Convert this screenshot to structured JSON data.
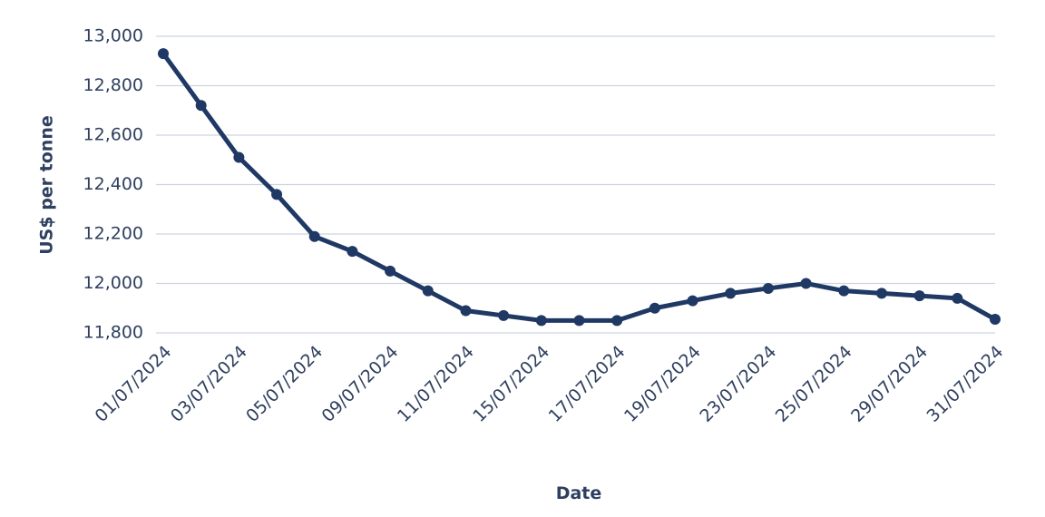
{
  "chart_data": {
    "type": "line",
    "y_label": "US$ per tonne",
    "x_label": "Date",
    "categories": [
      "01/07/2024",
      null,
      "03/07/2024",
      null,
      "05/07/2024",
      null,
      "09/07/2024",
      null,
      "11/07/2024",
      null,
      "15/07/2024",
      null,
      "17/07/2024",
      null,
      "19/07/2024",
      null,
      "23/07/2024",
      null,
      "25/07/2024",
      null,
      "29/07/2024",
      null,
      "31/07/2024"
    ],
    "series": [
      {
        "color": "#1f3864",
        "values": [
          12930,
          12720,
          12510,
          12360,
          12190,
          12130,
          12050,
          11970,
          11890,
          11870,
          11850,
          11850,
          11850,
          11900,
          11930,
          11960,
          11980,
          12000,
          11970,
          11960,
          11950,
          11940,
          11855
        ]
      }
    ],
    "ylim": [
      11800,
      13000
    ],
    "yticks": [
      {
        "value": 11800,
        "label": "11,800"
      },
      {
        "value": 12000,
        "label": "12,000"
      },
      {
        "value": 12200,
        "label": "12,200"
      },
      {
        "value": 12400,
        "label": "12,400"
      },
      {
        "value": 12600,
        "label": "12,600"
      },
      {
        "value": 12800,
        "label": "12,800"
      },
      {
        "value": 13000,
        "label": "13,000"
      }
    ],
    "grid": true
  }
}
